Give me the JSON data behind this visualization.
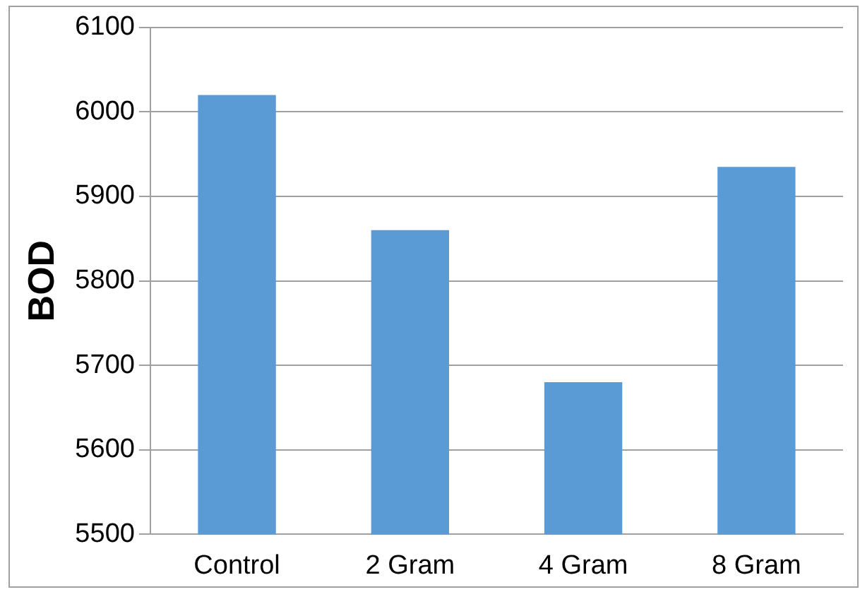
{
  "chart_data": {
    "type": "bar",
    "ylabel": "BOD",
    "categories": [
      "Control",
      "2 Gram",
      "4 Gram",
      "8 Gram"
    ],
    "values": [
      6020,
      5860,
      5680,
      5935
    ],
    "color": "#5b9bd5",
    "ylim": [
      5500,
      6100
    ],
    "yticks": [
      5500,
      5600,
      5700,
      5800,
      5900,
      6000,
      6100
    ],
    "grid": "y",
    "legend": false
  }
}
